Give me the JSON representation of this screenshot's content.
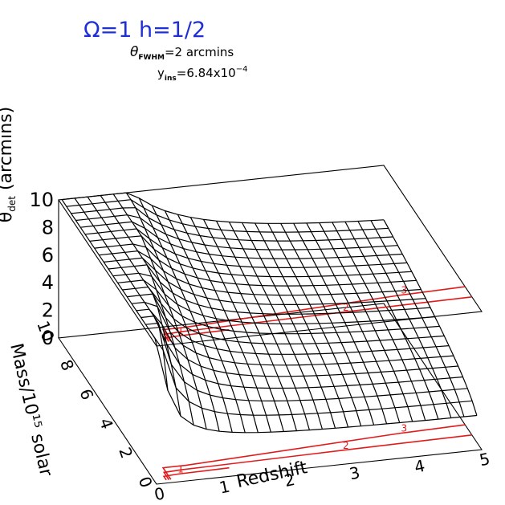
{
  "header": {
    "cosmology": "Ω=1   h=1/2"
  },
  "annotations": {
    "theta_symbol": "θ",
    "theta_sub": "FWHM",
    "theta_value": "=2 arcmins",
    "y_symbol": "y",
    "y_sub": "ins",
    "y_value": "=6.84x10",
    "y_exp": "−4"
  },
  "chart_data": {
    "type": "surface",
    "title": "Ω=1   h=1/2",
    "xlabel": "Redshift",
    "ylabel": "Mass/10¹⁵ solar",
    "zlabel": "θ_det (arcmins)",
    "xlim": [
      0,
      5
    ],
    "ylim": [
      0,
      10
    ],
    "zlim": [
      0,
      10
    ],
    "x_ticks": [
      "0",
      "1",
      "2",
      "3",
      "4",
      "5"
    ],
    "y_ticks": [
      "0",
      "2",
      "4",
      "6",
      "8",
      "10"
    ],
    "z_ticks": [
      "0",
      "2",
      "4",
      "6",
      "8",
      "10"
    ],
    "contour_levels": [
      "1",
      "2",
      "3"
    ],
    "colors": {
      "mesh": "#000000",
      "contour": "#e11b1b",
      "title": "#1f2fd6"
    }
  }
}
